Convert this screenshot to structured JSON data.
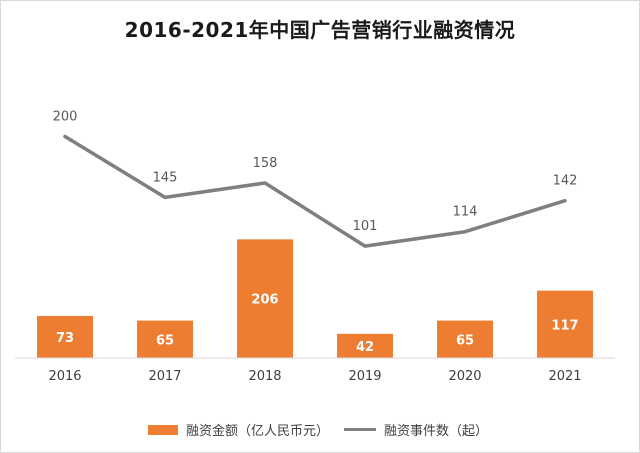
{
  "colors": {
    "bar": "#ED7D31",
    "line": "#7F7F7F",
    "axis": "#D9D9D9",
    "bar_label_inside": "#FFFFFF",
    "bar_label_outside": "#404040",
    "line_label": "#595959",
    "tick": "#404040"
  },
  "chart_data": {
    "type": "bar",
    "title": "2016-2021年中国广告营销行业融资情况",
    "categories": [
      "2016",
      "2017",
      "2018",
      "2019",
      "2020",
      "2021"
    ],
    "series": [
      {
        "name": "融资金额（亿人民币元）",
        "type": "bar",
        "axis": "left",
        "values": [
          73,
          65,
          206,
          42,
          65,
          117
        ],
        "labels": [
          "73",
          "65",
          "206",
          "42",
          "65",
          "117"
        ]
      },
      {
        "name": "融资事件数（起）",
        "type": "line",
        "axis": "right",
        "values": [
          200,
          145,
          158,
          101,
          114,
          142
        ],
        "labels": [
          "200",
          "145",
          "158",
          "101",
          "114",
          "142"
        ]
      }
    ],
    "ylim_left": [
      0,
      500
    ],
    "ylim_right": [
      0,
      260
    ],
    "xlabel": "",
    "ylabel": "",
    "grid": false,
    "legend": "bottom"
  }
}
